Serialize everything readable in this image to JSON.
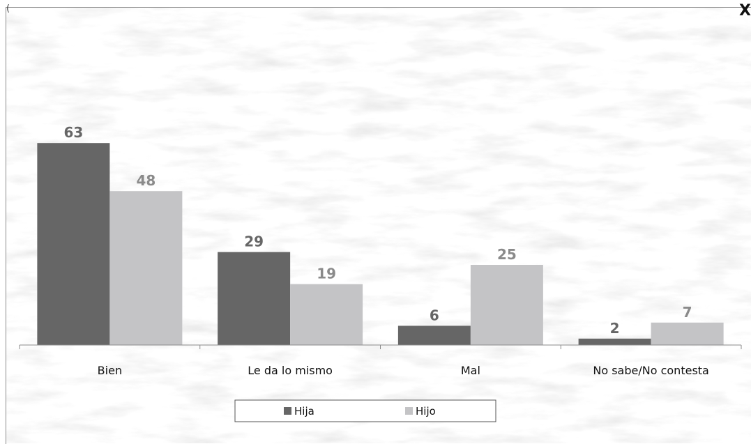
{
  "page": {
    "top_note": "(",
    "corner_mark": "X"
  },
  "chart_data": {
    "type": "bar",
    "categories": [
      "Bien",
      "Le da lo mismo",
      "Mal",
      "No sabe/No contesta"
    ],
    "series": [
      {
        "name": "Hija",
        "values": [
          63,
          29,
          6,
          2
        ],
        "color": "#666666",
        "label_color": "#666666"
      },
      {
        "name": "Hijo",
        "values": [
          48,
          19,
          25,
          7
        ],
        "color": "#c4c4c6",
        "label_color": "#8a8a8a"
      }
    ],
    "ylim": [
      0,
      100
    ],
    "grid": false,
    "legend": "bottom-center",
    "background": "faded-forest-texture"
  }
}
